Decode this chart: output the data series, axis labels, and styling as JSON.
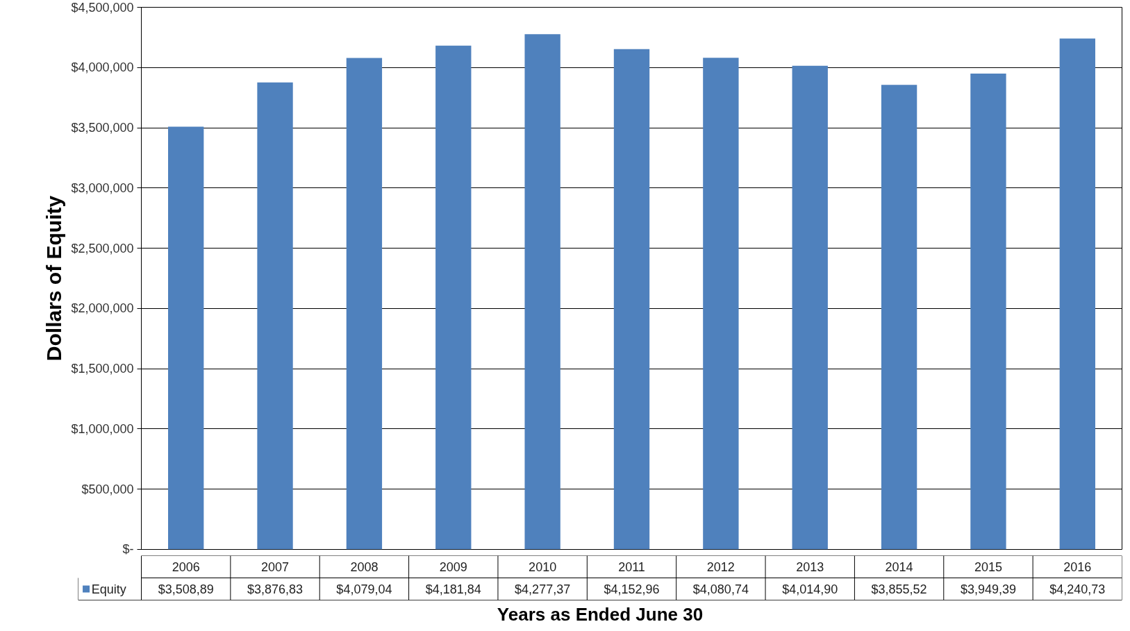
{
  "chart_data": {
    "type": "bar",
    "xlabel": "Years as Ended June 30",
    "ylabel": "Dollars of Equity",
    "categories": [
      "2006",
      "2007",
      "2008",
      "2009",
      "2010",
      "2011",
      "2012",
      "2013",
      "2014",
      "2015",
      "2016"
    ],
    "series": [
      {
        "name": "Equity",
        "color": "#4f81bd",
        "values": [
          3508890,
          3876830,
          4079040,
          4181840,
          4277370,
          4152960,
          4080740,
          4014900,
          3855520,
          3949390,
          4240730
        ],
        "value_labels": [
          "$3,508,89",
          "$3,876,83",
          "$4,079,04",
          "$4,181,84",
          "$4,277,37",
          "$4,152,96",
          "$4,080,74",
          "$4,014,90",
          "$3,855,52",
          "$3,949,39",
          "$4,240,73"
        ]
      }
    ],
    "ylim": [
      0,
      4500000
    ],
    "yticks": [
      {
        "value": 0,
        "label": "$-"
      },
      {
        "value": 500000,
        "label": "$500,000"
      },
      {
        "value": 1000000,
        "label": "$1,000,000"
      },
      {
        "value": 1500000,
        "label": "$1,500,000"
      },
      {
        "value": 2000000,
        "label": "$2,000,000"
      },
      {
        "value": 2500000,
        "label": "$2,500,000"
      },
      {
        "value": 3000000,
        "label": "$3,000,000"
      },
      {
        "value": 3500000,
        "label": "$3,500,000"
      },
      {
        "value": 4000000,
        "label": "$4,000,000"
      },
      {
        "value": 4500000,
        "label": "$4,500,000"
      }
    ],
    "grid": "y",
    "legend": "bottom"
  }
}
